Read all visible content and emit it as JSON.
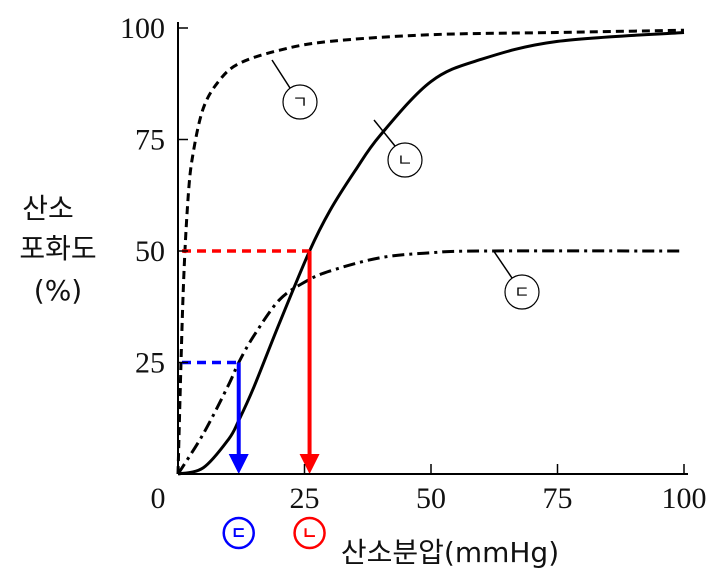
{
  "chart_data": {
    "type": "line",
    "xlabel": "산소분압(mmHg)",
    "ylabel_lines": [
      "산소",
      "포화도",
      "(%)"
    ],
    "xlim": [
      0,
      100
    ],
    "ylim": [
      0,
      100
    ],
    "xticks": [
      "0",
      "25",
      "50",
      "75",
      "100"
    ],
    "yticks": [
      "25",
      "50",
      "75",
      "100"
    ],
    "grid": false,
    "series": [
      {
        "name": "ㄱ",
        "style": "dashed",
        "color": "#000000",
        "x": [
          0,
          1,
          2,
          3,
          5,
          8,
          12,
          20,
          30,
          50,
          75,
          100
        ],
        "y": [
          0,
          40,
          62,
          72,
          82,
          88,
          92,
          95,
          97,
          98.5,
          99,
          99.5
        ]
      },
      {
        "name": "ㄴ",
        "style": "solid",
        "color": "#000000",
        "x": [
          0,
          5,
          10,
          12,
          15,
          20,
          26,
          30,
          35,
          40,
          50,
          60,
          75,
          100
        ],
        "y": [
          0,
          1.4,
          7.8,
          12,
          19.5,
          33.7,
          50,
          59,
          68,
          76,
          88,
          93,
          97,
          99
        ]
      },
      {
        "name": "ㄷ",
        "style": "dash-dot",
        "color": "#000000",
        "x": [
          0,
          5,
          10,
          12,
          15,
          20,
          25,
          30,
          40,
          50,
          60,
          100
        ],
        "y": [
          0,
          9,
          20,
          25,
          31,
          39,
          43,
          45.5,
          48.5,
          49.6,
          50,
          50
        ]
      }
    ],
    "annotations": [
      {
        "color": "#ff0000",
        "y_level": 50,
        "x_value": 26,
        "marker": "ㄴ"
      },
      {
        "color": "#0000ff",
        "y_level": 25,
        "x_value": 12,
        "marker": "ㄷ"
      }
    ]
  }
}
